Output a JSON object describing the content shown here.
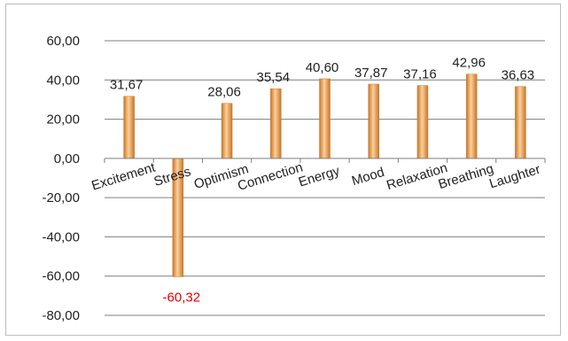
{
  "chart_data": {
    "type": "bar",
    "title": "",
    "xlabel": "",
    "ylabel": "",
    "categories": [
      "Excitement",
      "Stress",
      "Optimism",
      "Connection",
      "Energy",
      "Mood",
      "Relaxation",
      "Breathing",
      "Laughter"
    ],
    "values": [
      31.67,
      -60.32,
      28.06,
      35.54,
      40.6,
      37.87,
      37.16,
      42.96,
      36.63
    ],
    "value_labels": [
      "31,67",
      "-60,32",
      "28,06",
      "35,54",
      "40,60",
      "37,87",
      "37,16",
      "42,96",
      "36,63"
    ],
    "ylim": [
      -80,
      60
    ],
    "yticks": [
      60,
      40,
      20,
      0,
      -20,
      -40,
      -60,
      -80
    ],
    "ytick_labels": [
      "60,00",
      "40,00",
      "20,00",
      "0,00",
      "-20,00",
      "-40,00",
      "-60,00",
      "-80,00"
    ],
    "grid": true,
    "legend": "none",
    "colors": {
      "bar": "#f0a050",
      "bar_dark": "#c8762a",
      "bar_light": "#fcd09a",
      "negative_label": "#e00000",
      "grid": "#7f7f7f"
    }
  }
}
